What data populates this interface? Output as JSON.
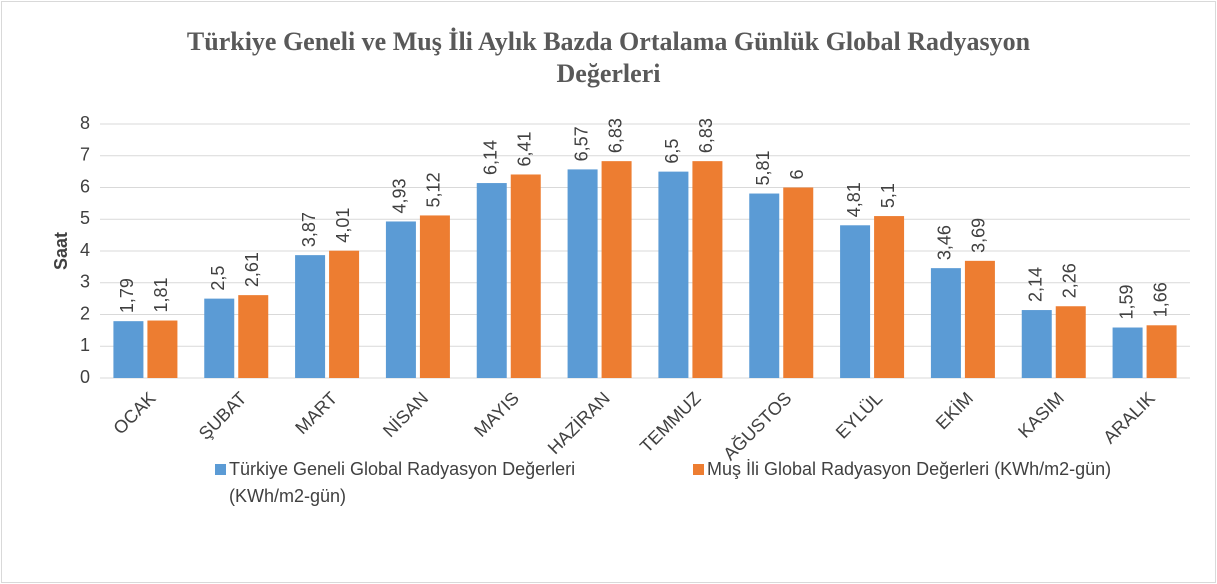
{
  "chart_data": {
    "type": "bar",
    "title": "Türkiye Geneli ve Muş İli Aylık Bazda Ortalama Günlük Global Radyasyon Değerleri",
    "y_label": "Saat",
    "categories": [
      "OCAK",
      "ŞUBAT",
      "MART",
      "NİSAN",
      "MAYIS",
      "HAZİRAN",
      "TEMMUZ",
      "AĞUSTOS",
      "EYLÜL",
      "EKİM",
      "KASIM",
      "ARALIK"
    ],
    "series": [
      {
        "name": "Türkiye Geneli Global Radyasyon Değerleri (KWh/m2-gün)",
        "color": "#5b9bd5",
        "values": [
          1.79,
          2.5,
          3.87,
          4.93,
          6.14,
          6.57,
          6.5,
          5.81,
          4.81,
          3.46,
          2.14,
          1.59
        ],
        "value_labels": [
          "1,79",
          "2,5",
          "3,87",
          "4,93",
          "6,14",
          "6,57",
          "6,5",
          "5,81",
          "4,81",
          "3,46",
          "2,14",
          "1,59"
        ]
      },
      {
        "name": "Muş İli Global Radyasyon Değerleri (KWh/m2-gün)",
        "color": "#ed7d31",
        "values": [
          1.81,
          2.61,
          4.01,
          5.12,
          6.41,
          6.83,
          6.83,
          6,
          5.1,
          3.69,
          2.26,
          1.66
        ],
        "value_labels": [
          "1,81",
          "2,61",
          "4,01",
          "5,12",
          "6,41",
          "6,83",
          "6,83",
          "6",
          "5,1",
          "3,69",
          "2,26",
          "1,66"
        ]
      }
    ],
    "ylim": [
      0,
      8
    ],
    "yticks": [
      0,
      1,
      2,
      3,
      4,
      5,
      6,
      7,
      8
    ],
    "grid": true,
    "legend": "bottom"
  }
}
